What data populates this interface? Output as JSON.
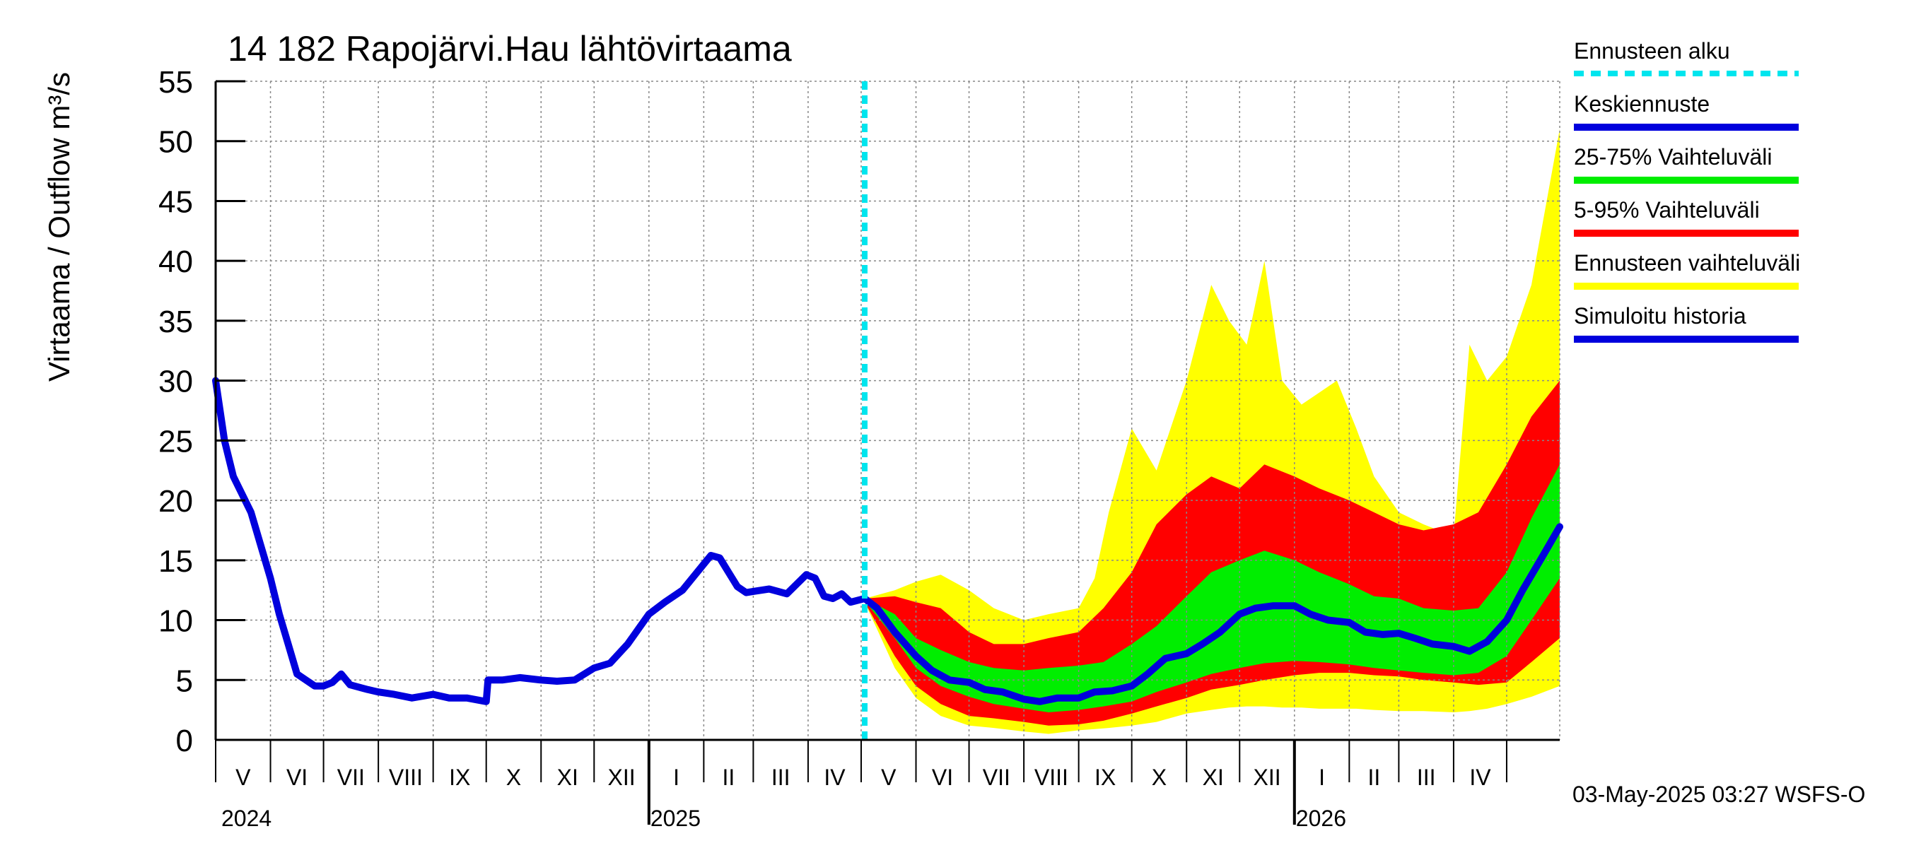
{
  "chart_data": {
    "type": "line",
    "title": "14 182 Rapojärvi.Hau lähtövirtaama",
    "ylabel": "Virtaama / Outflow    m³/s",
    "ylim": [
      0,
      55
    ],
    "yticks": [
      0,
      5,
      10,
      15,
      20,
      25,
      30,
      35,
      40,
      45,
      50,
      55
    ],
    "xlim": [
      "2024-05-01",
      "2026-05-31"
    ],
    "forecast_start": "2025-05-03",
    "grid": true,
    "legend_position": "right",
    "month_labels": [
      "V",
      "VI",
      "VII",
      "VIII",
      "IX",
      "X",
      "XI",
      "XII",
      "I",
      "II",
      "III",
      "IV",
      "V",
      "VI",
      "VII",
      "VIII",
      "IX",
      "X",
      "XI",
      "XII",
      "I",
      "II",
      "III",
      "IV"
    ],
    "year_labels": [
      "2024",
      "2025",
      "2026"
    ],
    "series": [
      {
        "name": "Simuloitu historia",
        "color": "#0000dd",
        "x": [
          "2024-05-01",
          "2024-05-06",
          "2024-05-11",
          "2024-05-16",
          "2024-05-21",
          "2024-05-26",
          "2024-06-01",
          "2024-06-06",
          "2024-06-11",
          "2024-06-16",
          "2024-06-21",
          "2024-06-26",
          "2024-07-01",
          "2024-07-06",
          "2024-07-11",
          "2024-07-16",
          "2024-07-21",
          "2024-07-26",
          "2024-08-01",
          "2024-08-10",
          "2024-08-20",
          "2024-09-01",
          "2024-09-10",
          "2024-09-20",
          "2024-10-01",
          "2024-10-02",
          "2024-10-10",
          "2024-10-20",
          "2024-11-01",
          "2024-11-10",
          "2024-11-20",
          "2024-12-01",
          "2024-12-10",
          "2024-12-20",
          "2025-01-01",
          "2025-01-10",
          "2025-01-20",
          "2025-01-31",
          "2025-02-05",
          "2025-02-10",
          "2025-02-15",
          "2025-02-20",
          "2025-02-25",
          "2025-03-01",
          "2025-03-10",
          "2025-03-20",
          "2025-03-31",
          "2025-04-05",
          "2025-04-10",
          "2025-04-15",
          "2025-04-20",
          "2025-04-25",
          "2025-05-03"
        ],
        "y": [
          30,
          25,
          22,
          20.5,
          19,
          16.5,
          13.5,
          10.5,
          8,
          5.5,
          5,
          4.5,
          4.5,
          4.8,
          5.5,
          4.6,
          4.4,
          4.2,
          4,
          3.8,
          3.5,
          3.8,
          3.5,
          3.5,
          3.2,
          5,
          5,
          5.2,
          5,
          4.9,
          5,
          6,
          6.4,
          8,
          10.5,
          11.5,
          12.5,
          14.5,
          15.4,
          15.2,
          14,
          12.8,
          12.3,
          12.4,
          12.6,
          12.2,
          13.8,
          13.5,
          12,
          11.8,
          12.2,
          11.5,
          11.8
        ]
      },
      {
        "name": "Keskiennuste",
        "color": "#0000dd",
        "x": [
          "2025-05-03",
          "2025-05-10",
          "2025-05-20",
          "2025-06-01",
          "2025-06-10",
          "2025-06-20",
          "2025-07-01",
          "2025-07-10",
          "2025-07-20",
          "2025-08-01",
          "2025-08-10",
          "2025-08-20",
          "2025-09-01",
          "2025-09-10",
          "2025-09-20",
          "2025-10-01",
          "2025-10-10",
          "2025-10-20",
          "2025-11-01",
          "2025-11-10",
          "2025-11-20",
          "2025-12-01",
          "2025-12-10",
          "2025-12-20",
          "2026-01-01",
          "2026-01-10",
          "2026-01-20",
          "2026-02-01",
          "2026-02-10",
          "2026-02-20",
          "2026-03-01",
          "2026-03-10",
          "2026-03-20",
          "2026-04-01",
          "2026-04-10",
          "2026-04-20",
          "2026-05-01",
          "2026-05-10",
          "2026-05-20",
          "2026-05-31"
        ],
        "y": [
          11.8,
          11,
          9,
          7,
          5.8,
          5,
          4.8,
          4.2,
          4,
          3.4,
          3.2,
          3.5,
          3.5,
          4,
          4.1,
          4.5,
          5.5,
          6.8,
          7.2,
          8,
          9,
          10.5,
          11,
          11.2,
          11.2,
          10.5,
          10,
          9.8,
          9,
          8.8,
          8.9,
          8.5,
          8,
          7.8,
          7.4,
          8.2,
          10,
          12.5,
          15,
          17.8
        ]
      }
    ],
    "bands": [
      {
        "name": "Ennusteen vaihteluväli",
        "color": "#ffff00",
        "x": [
          "2025-05-03",
          "2025-05-20",
          "2025-06-01",
          "2025-06-15",
          "2025-07-01",
          "2025-07-15",
          "2025-08-01",
          "2025-08-15",
          "2025-09-01",
          "2025-09-10",
          "2025-09-18",
          "2025-10-01",
          "2025-10-15",
          "2025-11-01",
          "2025-11-15",
          "2025-11-25",
          "2025-12-05",
          "2025-12-15",
          "2025-12-25",
          "2026-01-05",
          "2026-01-15",
          "2026-01-25",
          "2026-02-05",
          "2026-02-15",
          "2026-03-01",
          "2026-03-15",
          "2026-04-01",
          "2026-04-10",
          "2026-04-20",
          "2026-05-01",
          "2026-05-15",
          "2026-05-31"
        ],
        "low": [
          11.5,
          6,
          3.5,
          2,
          1.2,
          1,
          0.7,
          0.5,
          0.8,
          0.9,
          1,
          1.2,
          1.5,
          2.2,
          2.5,
          2.7,
          2.8,
          2.8,
          2.7,
          2.7,
          2.6,
          2.6,
          2.6,
          2.5,
          2.4,
          2.4,
          2.3,
          2.4,
          2.6,
          3,
          3.6,
          4.5
        ],
        "high": [
          11.8,
          12.5,
          13.2,
          13.8,
          12.5,
          11,
          10,
          10.5,
          11,
          13.5,
          19,
          26,
          22.5,
          30,
          38,
          35,
          33,
          40,
          30,
          28,
          29,
          30,
          26,
          22,
          19,
          18,
          17,
          33,
          30,
          32,
          38,
          51
        ]
      },
      {
        "name": "5-95% Vaihteluväli",
        "color": "#ff0000",
        "x": [
          "2025-05-03",
          "2025-05-20",
          "2025-06-01",
          "2025-06-15",
          "2025-07-01",
          "2025-07-15",
          "2025-08-01",
          "2025-08-15",
          "2025-09-01",
          "2025-09-15",
          "2025-10-01",
          "2025-10-15",
          "2025-11-01",
          "2025-11-15",
          "2025-12-01",
          "2025-12-15",
          "2026-01-01",
          "2026-01-15",
          "2026-02-01",
          "2026-02-15",
          "2026-03-01",
          "2026-03-15",
          "2026-04-01",
          "2026-04-15",
          "2026-05-01",
          "2026-05-15",
          "2026-05-31"
        ],
        "low": [
          11.5,
          7,
          4.5,
          3,
          2,
          1.8,
          1.5,
          1.2,
          1.3,
          1.6,
          2.2,
          2.8,
          3.5,
          4.2,
          4.6,
          5,
          5.4,
          5.6,
          5.6,
          5.4,
          5.3,
          5,
          4.8,
          4.6,
          4.8,
          6.5,
          8.5
        ],
        "high": [
          11.8,
          12,
          11.5,
          11,
          9,
          8,
          8,
          8.5,
          9,
          11,
          14,
          18,
          20.5,
          22,
          21,
          23,
          22,
          21,
          20,
          19,
          18,
          17.5,
          18,
          19,
          23,
          27,
          30
        ]
      },
      {
        "name": "25-75% Vaihteluväli",
        "color": "#00ee00",
        "x": [
          "2025-05-03",
          "2025-05-20",
          "2025-06-01",
          "2025-06-15",
          "2025-07-01",
          "2025-07-15",
          "2025-08-01",
          "2025-08-15",
          "2025-09-01",
          "2025-09-15",
          "2025-10-01",
          "2025-10-15",
          "2025-11-01",
          "2025-11-15",
          "2025-12-01",
          "2025-12-15",
          "2026-01-01",
          "2026-01-15",
          "2026-02-01",
          "2026-02-15",
          "2026-03-01",
          "2026-03-15",
          "2026-04-01",
          "2026-04-15",
          "2026-05-01",
          "2026-05-15",
          "2026-05-31"
        ],
        "low": [
          11.6,
          8.5,
          6,
          4.5,
          3.6,
          3,
          2.6,
          2.3,
          2.5,
          2.8,
          3.2,
          4,
          4.8,
          5.5,
          6,
          6.4,
          6.6,
          6.5,
          6.3,
          6,
          5.8,
          5.6,
          5.4,
          5.6,
          7,
          10,
          13.5
        ],
        "high": [
          11.8,
          10.5,
          8.5,
          7.5,
          6.5,
          6,
          5.8,
          6,
          6.2,
          6.5,
          8,
          9.5,
          12,
          14,
          15,
          15.8,
          15,
          14,
          13,
          12,
          11.8,
          11,
          10.8,
          11,
          14,
          18.5,
          23
        ]
      }
    ]
  },
  "legend": {
    "items": [
      {
        "label": "Ennusteen alku",
        "color": "#00e5ee",
        "style": "dashed"
      },
      {
        "label": "Keskiennuste",
        "color": "#0000dd",
        "style": "solid"
      },
      {
        "label": "25-75% Vaihteluväli",
        "color": "#00ee00",
        "style": "solid"
      },
      {
        "label": "5-95% Vaihteluväli",
        "color": "#ff0000",
        "style": "solid"
      },
      {
        "label": "Ennusteen vaihteluväli",
        "color": "#ffff00",
        "style": "solid"
      },
      {
        "label": "Simuloitu historia",
        "color": "#0000dd",
        "style": "solid"
      }
    ]
  },
  "footer": "03-May-2025 03:27 WSFS-O"
}
